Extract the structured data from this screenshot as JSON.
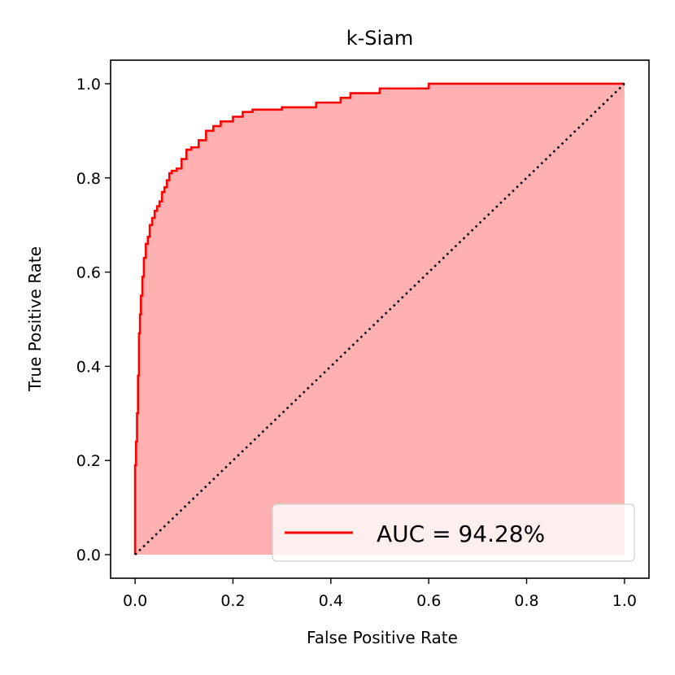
{
  "chart_data": {
    "type": "line",
    "title": "k-Siam",
    "xlabel": "False Positive Rate",
    "ylabel": "True Positive Rate",
    "xlim": [
      -0.05,
      1.05
    ],
    "ylim": [
      -0.05,
      1.05
    ],
    "xticks": [
      0.0,
      0.2,
      0.4,
      0.6,
      0.8,
      1.0
    ],
    "yticks": [
      0.0,
      0.2,
      0.4,
      0.6,
      0.8,
      1.0
    ],
    "xtick_labels": [
      "0.0",
      "0.2",
      "0.4",
      "0.6",
      "0.8",
      "1.0"
    ],
    "ytick_labels": [
      "0.0",
      "0.2",
      "0.4",
      "0.6",
      "0.8",
      "1.0"
    ],
    "grid": false,
    "legend_position": "lower-right",
    "series": [
      {
        "name": "AUC = 94.28%",
        "color": "#ff0000",
        "fill_color": "#ffb0b0",
        "x": [
          0.0,
          0.0,
          0.002,
          0.002,
          0.004,
          0.004,
          0.006,
          0.006,
          0.008,
          0.008,
          0.01,
          0.01,
          0.012,
          0.012,
          0.015,
          0.015,
          0.018,
          0.018,
          0.022,
          0.022,
          0.026,
          0.026,
          0.03,
          0.03,
          0.035,
          0.035,
          0.04,
          0.04,
          0.045,
          0.045,
          0.05,
          0.05,
          0.055,
          0.055,
          0.06,
          0.06,
          0.065,
          0.065,
          0.07,
          0.07,
          0.075,
          0.075,
          0.085,
          0.085,
          0.095,
          0.095,
          0.105,
          0.105,
          0.115,
          0.115,
          0.13,
          0.13,
          0.145,
          0.145,
          0.16,
          0.16,
          0.175,
          0.175,
          0.2,
          0.2,
          0.22,
          0.22,
          0.24,
          0.24,
          0.3,
          0.3,
          0.37,
          0.37,
          0.42,
          0.42,
          0.44,
          0.44,
          0.5,
          0.5,
          0.6,
          0.6,
          1.0
        ],
        "y": [
          0.0,
          0.19,
          0.19,
          0.24,
          0.24,
          0.3,
          0.3,
          0.38,
          0.38,
          0.47,
          0.47,
          0.51,
          0.51,
          0.55,
          0.55,
          0.59,
          0.59,
          0.63,
          0.63,
          0.66,
          0.66,
          0.675,
          0.675,
          0.7,
          0.7,
          0.715,
          0.715,
          0.73,
          0.73,
          0.74,
          0.74,
          0.75,
          0.75,
          0.77,
          0.77,
          0.78,
          0.78,
          0.795,
          0.795,
          0.81,
          0.81,
          0.815,
          0.815,
          0.82,
          0.82,
          0.84,
          0.84,
          0.86,
          0.86,
          0.865,
          0.865,
          0.88,
          0.88,
          0.9,
          0.9,
          0.91,
          0.91,
          0.92,
          0.92,
          0.93,
          0.93,
          0.94,
          0.94,
          0.945,
          0.945,
          0.95,
          0.95,
          0.96,
          0.96,
          0.97,
          0.97,
          0.98,
          0.98,
          0.99,
          0.99,
          1.0,
          1.0
        ]
      },
      {
        "name": "",
        "color": "#000000",
        "style": "dotted",
        "x": [
          0.0,
          1.0
        ],
        "y": [
          0.0,
          1.0
        ]
      }
    ]
  }
}
